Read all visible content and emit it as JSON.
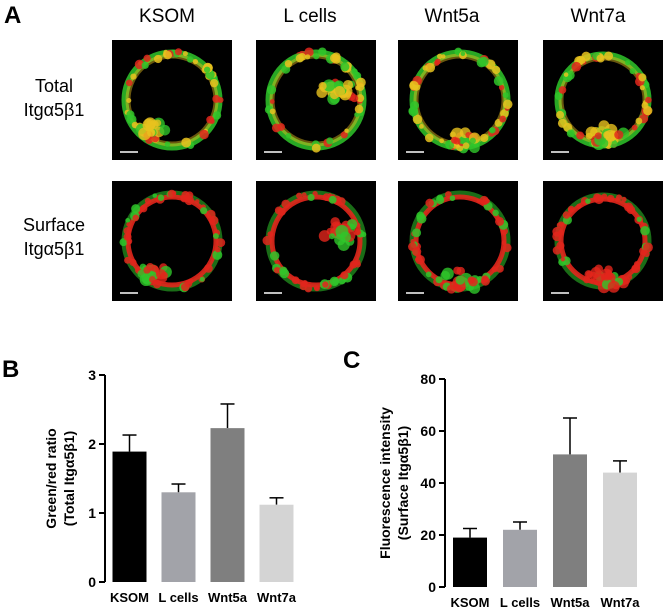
{
  "panels": {
    "a_label": "A",
    "b_label": "B",
    "c_label": "C"
  },
  "panel_a": {
    "columns": [
      "KSOM",
      "L cells",
      "Wnt5a",
      "Wnt7a"
    ],
    "rows": [
      {
        "line1": "Total",
        "line2": "Itgα5β1",
        "stain": "total"
      },
      {
        "line1": "Surface",
        "line2": "Itgα5β1",
        "stain": "surface"
      }
    ],
    "colors": {
      "green": "#2fc62a",
      "red": "#e2261c",
      "yellow": "#e8c21e",
      "background": "#000000"
    }
  },
  "chart_data": [
    {
      "type": "bar",
      "categories": [
        "KSOM",
        "L cells",
        "Wnt5a",
        "Wnt7a"
      ],
      "values": [
        1.89,
        1.3,
        2.23,
        1.12
      ],
      "errors": [
        0.24,
        0.12,
        0.35,
        0.1
      ],
      "ylabel": "Green/red ratio",
      "ylabel2": "(Total Itgα5β1)",
      "ylim": [
        0,
        3
      ],
      "yticks": [
        0,
        1,
        2,
        3
      ],
      "bar_colors": [
        "#000000",
        "#a2a3a9",
        "#7f7f7f",
        "#d4d4d4"
      ]
    },
    {
      "type": "bar",
      "categories": [
        "KSOM",
        "L cells",
        "Wnt5a",
        "Wnt7a"
      ],
      "values": [
        19,
        22,
        51,
        44
      ],
      "errors": [
        3.5,
        3,
        14,
        4.5
      ],
      "ylabel": "Fluorescence intensity",
      "ylabel2": "(Surface Itgα5β1)",
      "ylim": [
        0,
        80
      ],
      "yticks": [
        0,
        20,
        40,
        60,
        80
      ],
      "bar_colors": [
        "#000000",
        "#a2a3a9",
        "#7f7f7f",
        "#d4d4d4"
      ]
    }
  ]
}
